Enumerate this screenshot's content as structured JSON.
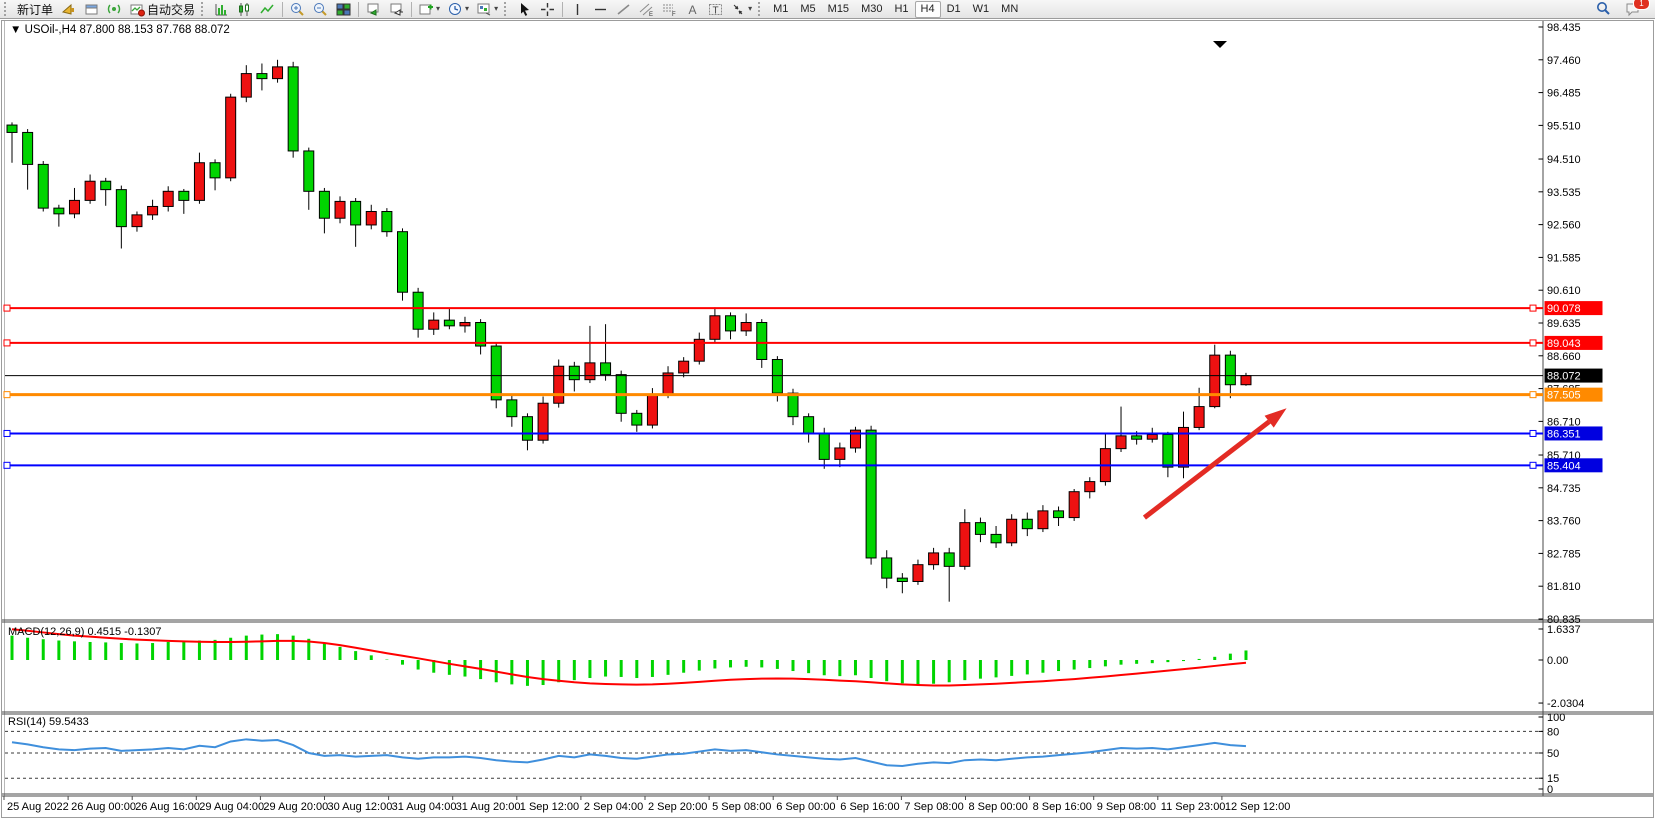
{
  "toolbar": {
    "new_order_label": "新订单",
    "autotrade_label": "自动交易",
    "timeframes": [
      "M1",
      "M5",
      "M15",
      "M30",
      "H1",
      "H4",
      "D1",
      "W1",
      "MN"
    ],
    "active_timeframe": "H4",
    "text_tool_letter": "A",
    "label_tool_letter": "T",
    "channel_letter": "E",
    "fibo_letter": "F",
    "notification_badge": "1"
  },
  "chart_data": {
    "type": "candlestick",
    "symbol_title": "USOil-,H4  87.800 88.153 87.768 88.072",
    "price_axis": {
      "top_price": 98.435,
      "bottom_price": 80.835,
      "labels": [
        "98.435",
        "97.460",
        "96.485",
        "95.510",
        "94.510",
        "93.535",
        "92.560",
        "91.585",
        "90.610",
        "89.635",
        "88.660",
        "87.685",
        "86.710",
        "85.710",
        "84.735",
        "83.760",
        "82.785",
        "81.810",
        "80.835"
      ]
    },
    "time_labels": [
      "25 Aug 2022",
      "26 Aug 00:00",
      "26 Aug 16:00",
      "29 Aug 04:00",
      "29 Aug 20:00",
      "30 Aug 12:00",
      "31 Aug 04:00",
      "31 Aug 20:00",
      "1 Sep 12:00",
      "2 Sep 04:00",
      "2 Sep 20:00",
      "5 Sep 08:00",
      "6 Sep 00:00",
      "6 Sep 16:00",
      "7 Sep 08:00",
      "8 Sep 00:00",
      "8 Sep 16:00",
      "9 Sep 08:00",
      "11 Sep 23:00",
      "12 Sep 12:00"
    ],
    "colors": {
      "bull": "#ee1111",
      "bear": "#00d400",
      "wick": "#000000",
      "arrow": "#e32b24",
      "macd_hist": "#00d400",
      "macd_signal": "#ff0000",
      "rsi_line": "#3f8fdc"
    },
    "candles": [
      [
        95.52,
        95.6,
        94.4,
        95.3
      ],
      [
        95.3,
        95.4,
        93.6,
        94.35
      ],
      [
        94.35,
        94.45,
        92.95,
        93.05
      ],
      [
        93.05,
        93.15,
        92.5,
        92.88
      ],
      [
        92.88,
        93.65,
        92.75,
        93.28
      ],
      [
        93.28,
        94.05,
        93.18,
        93.85
      ],
      [
        93.85,
        93.95,
        93.12,
        93.6
      ],
      [
        93.6,
        93.72,
        91.85,
        92.5
      ],
      [
        92.5,
        92.95,
        92.35,
        92.85
      ],
      [
        92.85,
        93.3,
        92.7,
        93.1
      ],
      [
        93.1,
        93.7,
        92.95,
        93.55
      ],
      [
        93.55,
        93.62,
        92.88,
        93.28
      ],
      [
        93.28,
        94.7,
        93.18,
        94.4
      ],
      [
        94.4,
        94.5,
        93.58,
        93.95
      ],
      [
        93.95,
        96.45,
        93.85,
        96.35
      ],
      [
        96.35,
        97.3,
        96.2,
        97.05
      ],
      [
        97.05,
        97.35,
        96.55,
        96.9
      ],
      [
        96.9,
        97.46,
        96.78,
        97.25
      ],
      [
        97.25,
        97.4,
        94.55,
        94.75
      ],
      [
        94.75,
        94.85,
        93.0,
        93.55
      ],
      [
        93.55,
        93.65,
        92.3,
        92.75
      ],
      [
        92.75,
        93.4,
        92.6,
        93.25
      ],
      [
        93.25,
        93.35,
        91.9,
        92.55
      ],
      [
        92.55,
        93.15,
        92.42,
        92.95
      ],
      [
        92.95,
        93.05,
        92.2,
        92.35
      ],
      [
        92.35,
        92.45,
        90.3,
        90.55
      ],
      [
        90.55,
        90.68,
        89.2,
        89.45
      ],
      [
        89.45,
        89.95,
        89.28,
        89.72
      ],
      [
        89.72,
        90.05,
        89.45,
        89.55
      ],
      [
        89.55,
        89.82,
        89.35,
        89.65
      ],
      [
        89.65,
        89.75,
        88.7,
        88.95
      ],
      [
        88.95,
        89.05,
        87.1,
        87.35
      ],
      [
        87.35,
        87.48,
        86.55,
        86.85
      ],
      [
        86.85,
        86.95,
        85.85,
        86.15
      ],
      [
        86.15,
        87.45,
        86.05,
        87.25
      ],
      [
        87.25,
        88.55,
        87.12,
        88.35
      ],
      [
        88.35,
        88.48,
        87.6,
        87.95
      ],
      [
        87.95,
        89.55,
        87.85,
        88.45
      ],
      [
        88.45,
        89.6,
        87.92,
        88.1
      ],
      [
        88.1,
        88.22,
        86.7,
        86.95
      ],
      [
        86.95,
        87.05,
        86.4,
        86.6
      ],
      [
        86.6,
        87.7,
        86.5,
        87.5
      ],
      [
        87.5,
        88.35,
        87.4,
        88.15
      ],
      [
        88.15,
        88.62,
        88.02,
        88.5
      ],
      [
        88.5,
        89.35,
        88.4,
        89.15
      ],
      [
        89.15,
        90.1,
        89.05,
        89.85
      ],
      [
        89.85,
        89.95,
        89.15,
        89.4
      ],
      [
        89.4,
        89.92,
        89.25,
        89.65
      ],
      [
        89.65,
        89.75,
        88.3,
        88.55
      ],
      [
        88.55,
        88.65,
        87.3,
        87.55
      ],
      [
        87.55,
        87.68,
        86.6,
        86.85
      ],
      [
        86.85,
        86.95,
        86.08,
        86.35
      ],
      [
        86.35,
        86.52,
        85.3,
        85.58
      ],
      [
        85.58,
        86.08,
        85.35,
        85.92
      ],
      [
        85.92,
        86.55,
        85.78,
        86.45
      ],
      [
        86.45,
        86.58,
        82.45,
        82.65
      ],
      [
        82.65,
        82.88,
        81.75,
        82.05
      ],
      [
        82.05,
        82.2,
        81.6,
        81.95
      ],
      [
        81.95,
        82.6,
        81.85,
        82.45
      ],
      [
        82.45,
        82.95,
        82.3,
        82.8
      ],
      [
        82.8,
        82.95,
        81.35,
        82.4
      ],
      [
        82.4,
        84.1,
        82.3,
        83.7
      ],
      [
        83.7,
        83.85,
        83.12,
        83.35
      ],
      [
        83.35,
        83.6,
        82.95,
        83.1
      ],
      [
        83.1,
        83.95,
        83.0,
        83.8
      ],
      [
        83.8,
        84.0,
        83.3,
        83.52
      ],
      [
        83.52,
        84.22,
        83.42,
        84.05
      ],
      [
        84.05,
        84.18,
        83.6,
        83.85
      ],
      [
        83.85,
        84.7,
        83.75,
        84.62
      ],
      [
        84.62,
        85.05,
        84.42,
        84.92
      ],
      [
        84.92,
        86.35,
        84.8,
        85.9
      ],
      [
        85.9,
        87.15,
        85.8,
        86.28
      ],
      [
        86.28,
        86.42,
        86.02,
        86.18
      ],
      [
        86.18,
        86.52,
        86.08,
        86.32
      ],
      [
        86.32,
        86.4,
        85.05,
        85.35
      ],
      [
        85.35,
        87.0,
        85.02,
        86.53
      ],
      [
        86.53,
        87.71,
        86.45,
        87.15
      ],
      [
        87.15,
        88.99,
        87.1,
        88.68
      ],
      [
        88.68,
        88.81,
        87.4,
        87.8
      ],
      [
        87.8,
        88.153,
        87.768,
        88.072
      ]
    ],
    "hlines": [
      {
        "price": 90.078,
        "color": "#ff0000",
        "width": 2,
        "tag": "90.078",
        "tag_bg": "#ff0000",
        "markers": true
      },
      {
        "price": 89.043,
        "color": "#ff0000",
        "width": 2,
        "tag": "89.043",
        "tag_bg": "#ff0000",
        "markers": true
      },
      {
        "price": 88.072,
        "color": "#000000",
        "width": 1,
        "tag": "88.072",
        "tag_bg": "#000000",
        "markers": false
      },
      {
        "price": 87.505,
        "color": "#ff8a00",
        "width": 3,
        "tag": "87.505",
        "tag_bg": "#ff8a00",
        "markers": true
      },
      {
        "price": 86.351,
        "color": "#0000ff",
        "width": 2,
        "tag": "86.351",
        "tag_bg": "#0000e0",
        "markers": true
      },
      {
        "price": 85.404,
        "color": "#0000ff",
        "width": 2,
        "tag": "85.404",
        "tag_bg": "#0000e0",
        "markers": true
      }
    ],
    "trend_arrow": {
      "from_index": 72.5,
      "from_price": 83.85,
      "to_index": 81.6,
      "to_price": 87.1
    },
    "macd": {
      "label": "MACD(12,26,9) 0.4515 -0.1307",
      "axis_labels": [
        "1.6337",
        "0.00",
        "-2.0304"
      ],
      "axis_values": [
        1.6337,
        0.0,
        -2.0304
      ],
      "histogram": [
        1.15,
        1.05,
        0.98,
        0.92,
        0.88,
        0.85,
        0.83,
        0.8,
        0.78,
        0.8,
        0.85,
        0.88,
        0.92,
        0.95,
        1.05,
        1.15,
        1.2,
        1.22,
        1.15,
        1.0,
        0.82,
        0.62,
        0.42,
        0.22,
        0.02,
        -0.22,
        -0.45,
        -0.6,
        -0.7,
        -0.78,
        -0.9,
        -1.05,
        -1.15,
        -1.22,
        -1.18,
        -1.05,
        -0.95,
        -0.85,
        -0.78,
        -0.8,
        -0.85,
        -0.8,
        -0.7,
        -0.6,
        -0.5,
        -0.4,
        -0.35,
        -0.32,
        -0.35,
        -0.42,
        -0.52,
        -0.62,
        -0.72,
        -0.76,
        -0.72,
        -0.85,
        -1.0,
        -1.1,
        -1.15,
        -1.12,
        -1.05,
        -0.95,
        -0.88,
        -0.82,
        -0.75,
        -0.68,
        -0.6,
        -0.52,
        -0.45,
        -0.38,
        -0.3,
        -0.22,
        -0.18,
        -0.15,
        -0.1,
        -0.05,
        0.05,
        0.15,
        0.3,
        0.45
      ],
      "signal": [
        1.45,
        1.38,
        1.3,
        1.22,
        1.15,
        1.1,
        1.05,
        1.0,
        0.96,
        0.93,
        0.9,
        0.88,
        0.86,
        0.85,
        0.85,
        0.86,
        0.88,
        0.9,
        0.9,
        0.87,
        0.8,
        0.7,
        0.58,
        0.45,
        0.32,
        0.2,
        0.08,
        -0.05,
        -0.18,
        -0.3,
        -0.42,
        -0.55,
        -0.68,
        -0.8,
        -0.9,
        -0.98,
        -1.05,
        -1.1,
        -1.13,
        -1.15,
        -1.16,
        -1.15,
        -1.12,
        -1.08,
        -1.03,
        -0.98,
        -0.93,
        -0.9,
        -0.88,
        -0.87,
        -0.88,
        -0.9,
        -0.93,
        -0.97,
        -1.0,
        -1.05,
        -1.1,
        -1.15,
        -1.18,
        -1.2,
        -1.2,
        -1.18,
        -1.15,
        -1.12,
        -1.08,
        -1.04,
        -1.0,
        -0.95,
        -0.9,
        -0.84,
        -0.78,
        -0.71,
        -0.64,
        -0.57,
        -0.5,
        -0.43,
        -0.36,
        -0.28,
        -0.2,
        -0.13
      ]
    },
    "rsi": {
      "label": "RSI(14) 59.5433",
      "axis_labels": [
        "100",
        "80",
        "50",
        "15",
        "0"
      ],
      "axis_values": [
        100,
        80,
        50,
        15,
        0
      ],
      "levels": [
        80,
        50,
        15
      ],
      "values": [
        65,
        62,
        58,
        55,
        54,
        56,
        57,
        53,
        54,
        55,
        57,
        55,
        60,
        58,
        66,
        69,
        67,
        68,
        61,
        50,
        46,
        47,
        45,
        46,
        47,
        44,
        42,
        44,
        44,
        45,
        43,
        40,
        38,
        37,
        41,
        46,
        44,
        48,
        46,
        43,
        42,
        45,
        48,
        49,
        52,
        55,
        53,
        54,
        51,
        48,
        46,
        44,
        42,
        41,
        43,
        38,
        33,
        32,
        35,
        37,
        36,
        40,
        41,
        40,
        42,
        44,
        45,
        47,
        49,
        51,
        54,
        57,
        56,
        57,
        55,
        58,
        61,
        64,
        61,
        59.54
      ]
    }
  }
}
